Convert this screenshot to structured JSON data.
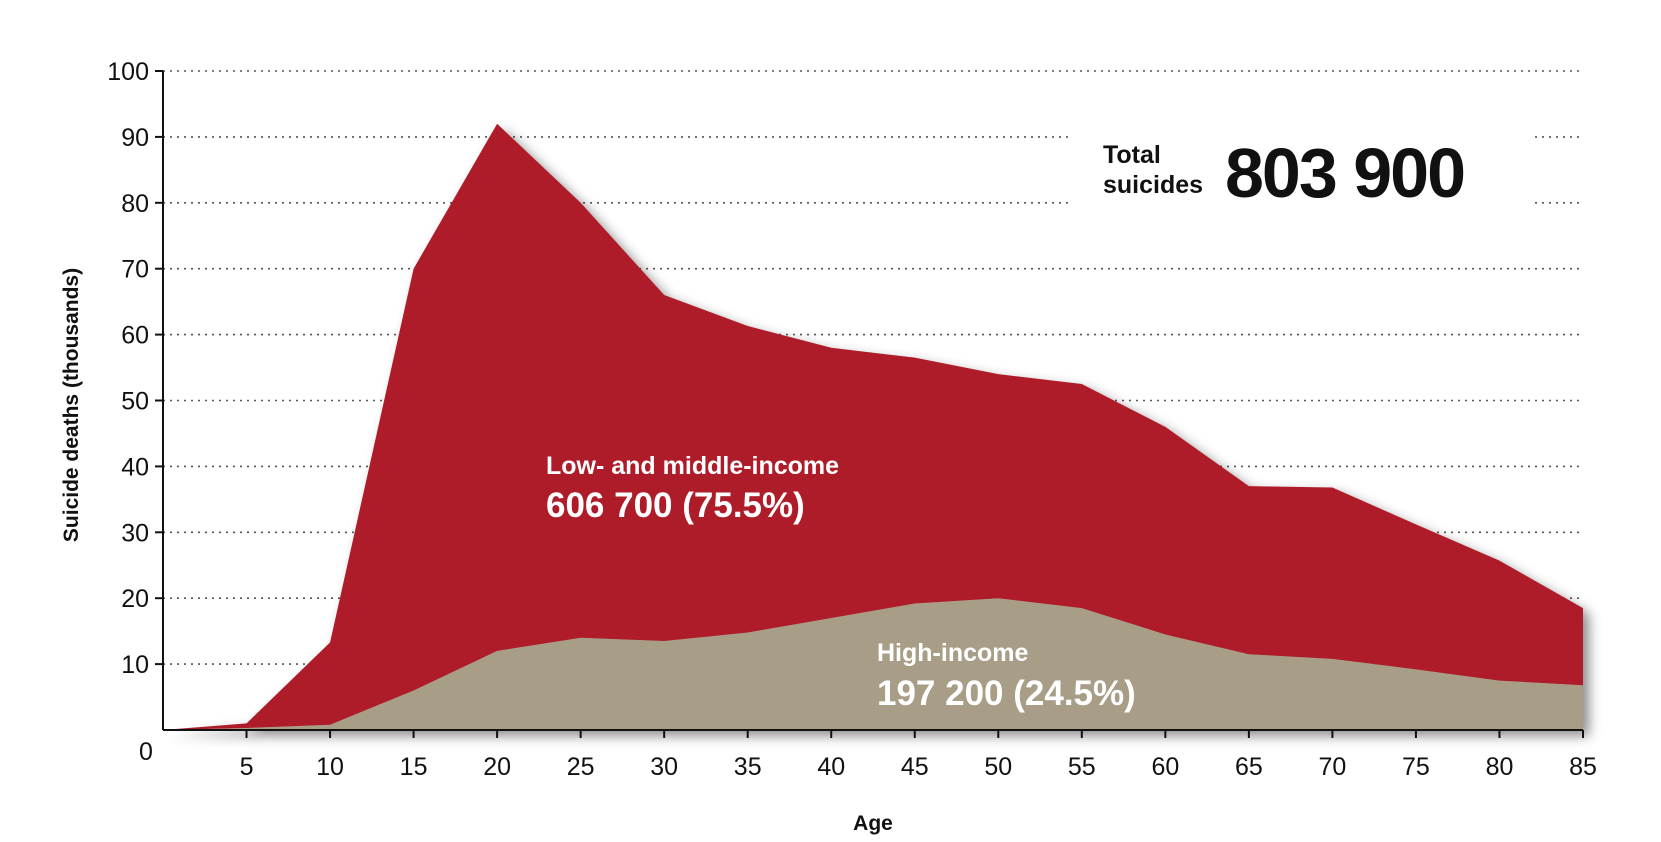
{
  "chart_data": {
    "type": "area",
    "stacked": true,
    "x": [
      0,
      5,
      10,
      15,
      20,
      25,
      30,
      35,
      40,
      45,
      50,
      55,
      60,
      65,
      70,
      75,
      80,
      85
    ],
    "series": [
      {
        "name": "High-income",
        "color": "#a89e87",
        "values": [
          0,
          0.3,
          0.8,
          6,
          12,
          14,
          13.5,
          14.8,
          17,
          19.2,
          20,
          18.5,
          14.5,
          11.5,
          10.8,
          9.2,
          7.5,
          6.8
        ],
        "label_value": "197 200 (24.5%)"
      },
      {
        "name": "Low- and middle-income",
        "color": "#ae1e2a",
        "values": [
          0,
          0.7,
          12.5,
          64,
          80,
          66,
          52.5,
          46.5,
          41,
          37.3,
          34,
          34,
          31.5,
          25.5,
          26,
          22,
          18.2,
          11.7
        ],
        "label_value": "606 700 (75.5%)"
      }
    ],
    "ylabel": "Suicide deaths (thousands)",
    "xlabel": "Age",
    "ylim": [
      0,
      100
    ],
    "xlim": [
      0,
      85
    ],
    "y_ticks": [
      0,
      10,
      20,
      30,
      40,
      50,
      60,
      70,
      80,
      90,
      100
    ],
    "x_ticks": [
      5,
      10,
      15,
      20,
      25,
      30,
      35,
      40,
      45,
      50,
      55,
      60,
      65,
      70,
      75,
      80,
      85
    ],
    "grid": "horizontal-dotted",
    "total": {
      "label_line1": "Total",
      "label_line2": "suicides",
      "value": "803 900"
    }
  }
}
